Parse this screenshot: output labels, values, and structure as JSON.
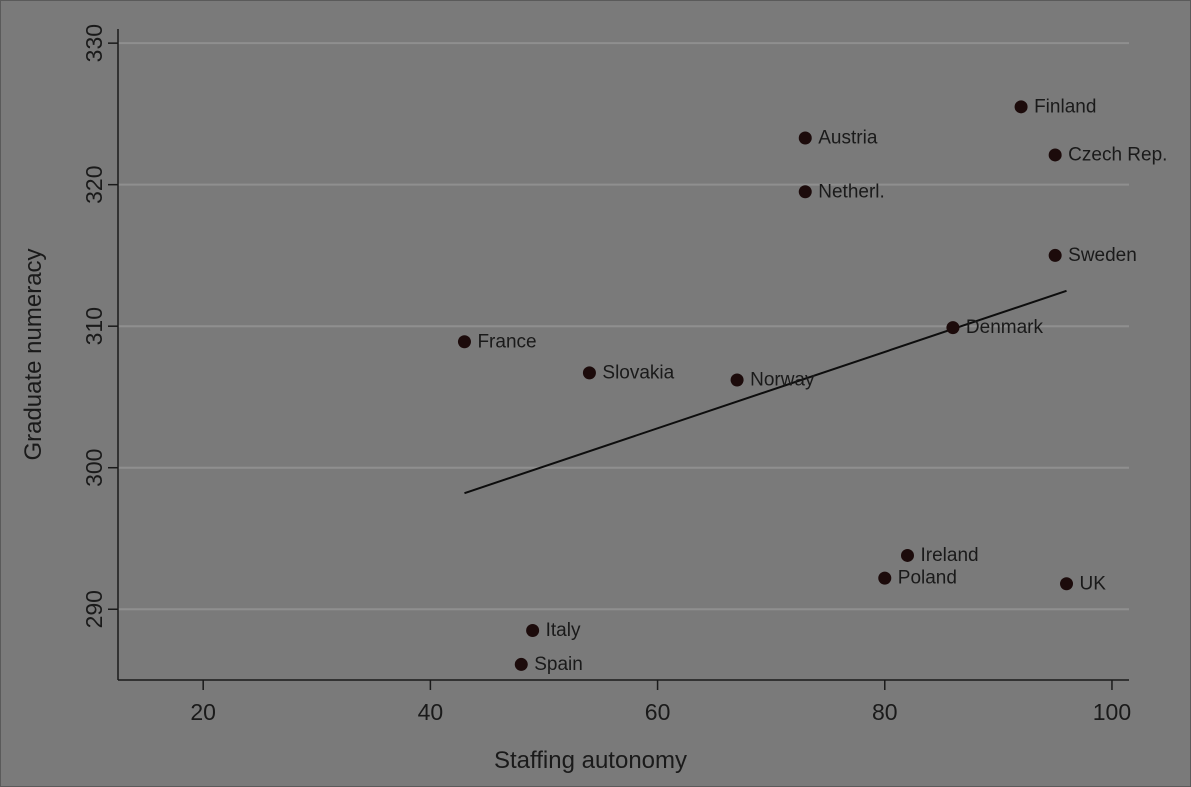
{
  "chart_data": {
    "type": "scatter",
    "title": "",
    "xlabel": "Staffing autonomy",
    "ylabel": "Graduate numeracy",
    "xlim": [
      12.5,
      101.5
    ],
    "ylim": [
      285,
      331
    ],
    "x_ticks": [
      20,
      40,
      60,
      80,
      100
    ],
    "y_ticks": [
      290,
      300,
      310,
      320,
      330
    ],
    "grid": "horizontal",
    "colors": {
      "background": "#7a7a7a",
      "gridline": "#8f8f8f",
      "axis": "#1a1a1a",
      "marker": "#1c0b0b",
      "fit_line": "#0d0d0d"
    },
    "points": [
      {
        "label": "Finland",
        "x": 92,
        "y": 325.5
      },
      {
        "label": "Austria",
        "x": 73,
        "y": 323.3
      },
      {
        "label": "Czech Rep.",
        "x": 95,
        "y": 322.1
      },
      {
        "label": "Netherl.",
        "x": 73,
        "y": 319.5
      },
      {
        "label": "Sweden",
        "x": 95,
        "y": 315.0
      },
      {
        "label": "Denmark",
        "x": 86,
        "y": 309.9
      },
      {
        "label": "France",
        "x": 43,
        "y": 308.9
      },
      {
        "label": "Slovakia",
        "x": 54,
        "y": 306.7
      },
      {
        "label": "Norway",
        "x": 67,
        "y": 306.2
      },
      {
        "label": "Ireland",
        "x": 82,
        "y": 293.8
      },
      {
        "label": "Poland",
        "x": 80,
        "y": 292.2
      },
      {
        "label": "UK",
        "x": 96,
        "y": 291.8
      },
      {
        "label": "Italy",
        "x": 49,
        "y": 288.5
      },
      {
        "label": "Spain",
        "x": 48,
        "y": 286.1
      }
    ],
    "fit_line": {
      "x": [
        43,
        96
      ],
      "y": [
        298.2,
        312.5
      ]
    }
  }
}
